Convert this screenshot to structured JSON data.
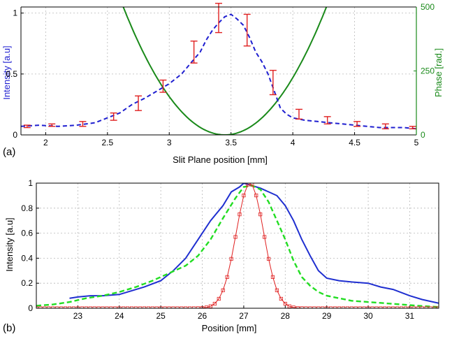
{
  "chart_data": [
    {
      "id": "a",
      "type": "line",
      "panel_label": "(a)",
      "xlabel": "Slit Plane position [mm]",
      "ylabel": "Intensity [a.u]",
      "y2label": "Phase [rad.]",
      "xlim": [
        1.8,
        5.0
      ],
      "ylim": [
        0,
        1.05
      ],
      "y2lim": [
        0,
        500
      ],
      "xticks": [
        "2",
        "2.5",
        "3",
        "3.5",
        "4",
        "4.5",
        "5"
      ],
      "yticks": [
        "0",
        "0.5",
        "1"
      ],
      "y2ticks": [
        "0",
        "250",
        "500"
      ],
      "grid": true,
      "colors": {
        "intensity": "#1f1fd0",
        "errorbar": "#e02020",
        "phase": "#1a8a1a",
        "y2axis": "#1a8a1a"
      },
      "series": [
        {
          "key": "intensity",
          "style": "dashed",
          "x": [
            1.8,
            1.95,
            2.1,
            2.25,
            2.4,
            2.5,
            2.6,
            2.7,
            2.8,
            2.9,
            3.0,
            3.1,
            3.2,
            3.25,
            3.3,
            3.35,
            3.4,
            3.45,
            3.5,
            3.55,
            3.6,
            3.65,
            3.7,
            3.75,
            3.8,
            3.85,
            3.9,
            3.95,
            4.0,
            4.1,
            4.2,
            4.3,
            4.4,
            4.5,
            4.6,
            4.7,
            4.8,
            4.9,
            5.0
          ],
          "y": [
            0.07,
            0.08,
            0.07,
            0.08,
            0.1,
            0.14,
            0.18,
            0.25,
            0.3,
            0.36,
            0.42,
            0.5,
            0.62,
            0.68,
            0.78,
            0.86,
            0.92,
            0.97,
            0.99,
            0.95,
            0.9,
            0.8,
            0.68,
            0.6,
            0.5,
            0.36,
            0.22,
            0.17,
            0.14,
            0.12,
            0.11,
            0.1,
            0.09,
            0.08,
            0.07,
            0.06,
            0.06,
            0.06,
            0.05
          ]
        },
        {
          "key": "phase",
          "style": "solid",
          "center": 3.45,
          "curvature": 740,
          "x_range": [
            1.8,
            5.0
          ]
        }
      ],
      "errorbars": {
        "x": [
          1.85,
          2.05,
          2.3,
          2.55,
          2.75,
          2.95,
          3.2,
          3.4,
          3.63,
          3.84,
          4.05,
          4.28,
          4.52,
          4.75,
          4.97
        ],
        "y": [
          0.07,
          0.08,
          0.09,
          0.15,
          0.26,
          0.4,
          0.68,
          0.96,
          0.86,
          0.43,
          0.17,
          0.12,
          0.09,
          0.07,
          0.06
        ],
        "err": [
          0.01,
          0.01,
          0.02,
          0.03,
          0.06,
          0.05,
          0.09,
          0.12,
          0.13,
          0.1,
          0.04,
          0.03,
          0.02,
          0.02,
          0.01
        ]
      }
    },
    {
      "id": "b",
      "type": "line",
      "panel_label": "(b)",
      "xlabel": "Position [mm]",
      "ylabel": "Intensity [a.u]",
      "xlim": [
        22.0,
        31.7
      ],
      "ylim": [
        0,
        1.0
      ],
      "xticks": [
        "23",
        "24",
        "25",
        "26",
        "27",
        "28",
        "29",
        "30",
        "31"
      ],
      "yticks": [
        "0",
        "0.2",
        "0.4",
        "0.6",
        "0.8",
        "1"
      ],
      "grid": true,
      "colors": {
        "blue": "#1f2fd0",
        "green": "#22dd22",
        "red": "#e02020"
      },
      "series": [
        {
          "key": "blue",
          "style": "solid",
          "x": [
            22.8,
            23.0,
            23.3,
            23.6,
            24.0,
            24.3,
            24.6,
            25.0,
            25.3,
            25.6,
            25.9,
            26.2,
            26.5,
            26.7,
            26.9,
            27.0,
            27.2,
            27.4,
            27.6,
            27.8,
            28.0,
            28.2,
            28.4,
            28.6,
            28.8,
            29.0,
            29.3,
            29.6,
            30.0,
            30.3,
            30.6,
            31.0,
            31.3,
            31.7
          ],
          "y": [
            0.08,
            0.09,
            0.1,
            0.1,
            0.11,
            0.14,
            0.17,
            0.22,
            0.3,
            0.4,
            0.55,
            0.7,
            0.82,
            0.93,
            0.97,
            1.0,
            0.98,
            0.96,
            0.93,
            0.9,
            0.82,
            0.7,
            0.55,
            0.42,
            0.3,
            0.24,
            0.22,
            0.21,
            0.2,
            0.17,
            0.15,
            0.1,
            0.07,
            0.04
          ]
        },
        {
          "key": "green",
          "style": "dashed",
          "x": [
            22.0,
            22.4,
            22.8,
            23.2,
            23.6,
            24.0,
            24.4,
            24.8,
            25.2,
            25.6,
            25.9,
            26.2,
            26.5,
            26.8,
            27.0,
            27.2,
            27.4,
            27.6,
            27.8,
            28.0,
            28.2,
            28.4,
            28.6,
            28.8,
            29.0,
            29.3,
            29.6,
            30.0,
            30.4,
            30.8,
            31.2,
            31.7
          ],
          "y": [
            0.02,
            0.03,
            0.05,
            0.08,
            0.1,
            0.13,
            0.17,
            0.22,
            0.28,
            0.34,
            0.42,
            0.55,
            0.72,
            0.88,
            0.97,
            0.98,
            0.95,
            0.85,
            0.7,
            0.55,
            0.38,
            0.25,
            0.18,
            0.13,
            0.1,
            0.08,
            0.06,
            0.05,
            0.04,
            0.03,
            0.02,
            0.01
          ]
        },
        {
          "key": "red",
          "style": "markers",
          "center": 27.15,
          "sigma": 0.33,
          "x_range": [
            22.0,
            31.7
          ],
          "step": 0.1
        }
      ]
    }
  ]
}
